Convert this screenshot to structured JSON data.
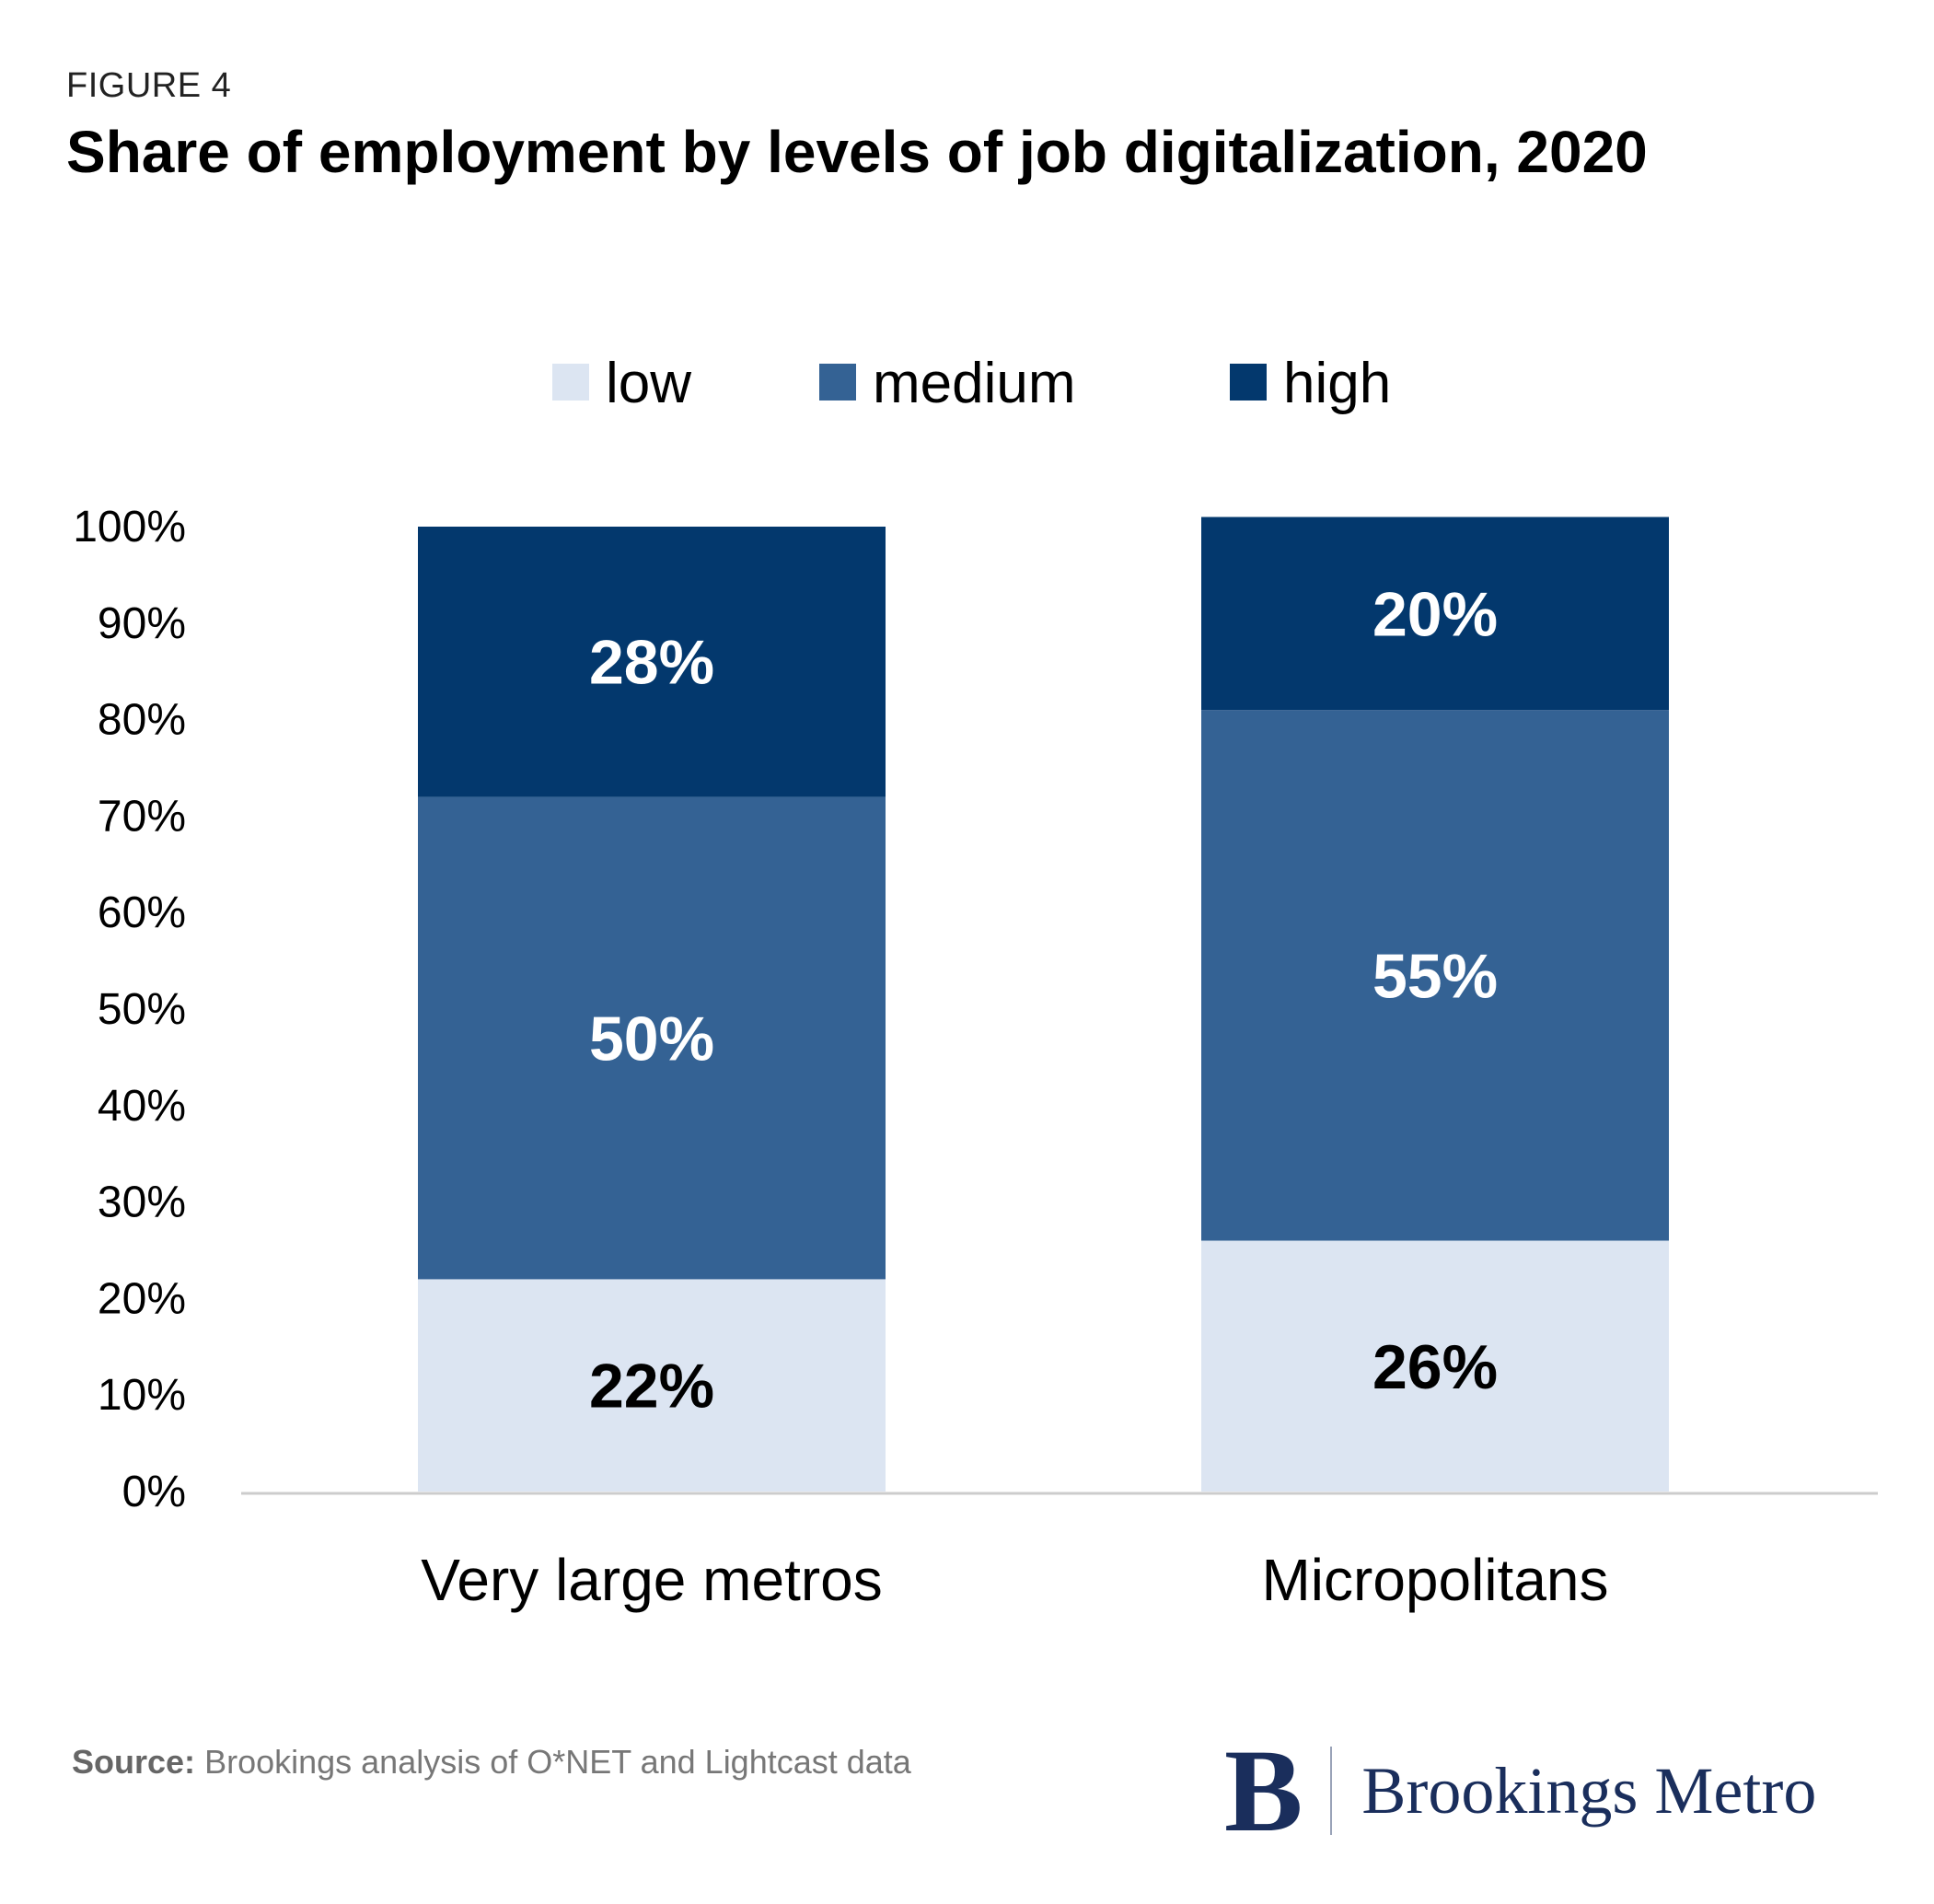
{
  "figure_label": "FIGURE 4",
  "title": "Share of employment by levels of job digitalization, 2020",
  "source": {
    "label": "Source:",
    "text": "Brookings analysis of O*NET and Lightcast data"
  },
  "logo": {
    "mark": "B",
    "text": "Brookings Metro"
  },
  "colors": {
    "low": "#dce5f2",
    "medium": "#346294",
    "high": "#03386d",
    "axis": "#cccccc"
  },
  "chart_data": {
    "type": "bar",
    "stacked": true,
    "title": "Share of employment by levels of job digitalization, 2020",
    "categories": [
      "Very large metros",
      "Micropolitans"
    ],
    "series": [
      {
        "name": "low",
        "values": [
          22,
          26
        ],
        "labels": [
          "22%",
          "26%"
        ]
      },
      {
        "name": "medium",
        "values": [
          50,
          55
        ],
        "labels": [
          "50%",
          "55%"
        ]
      },
      {
        "name": "high",
        "values": [
          28,
          20
        ],
        "labels": [
          "28%",
          "20%"
        ]
      }
    ],
    "ylim": [
      0,
      100
    ],
    "yticks": [
      "0%",
      "10%",
      "20%",
      "30%",
      "40%",
      "50%",
      "60%",
      "70%",
      "80%",
      "90%",
      "100%"
    ],
    "xlabel": "",
    "ylabel": "",
    "legend_position": "top-center",
    "grid": false
  }
}
